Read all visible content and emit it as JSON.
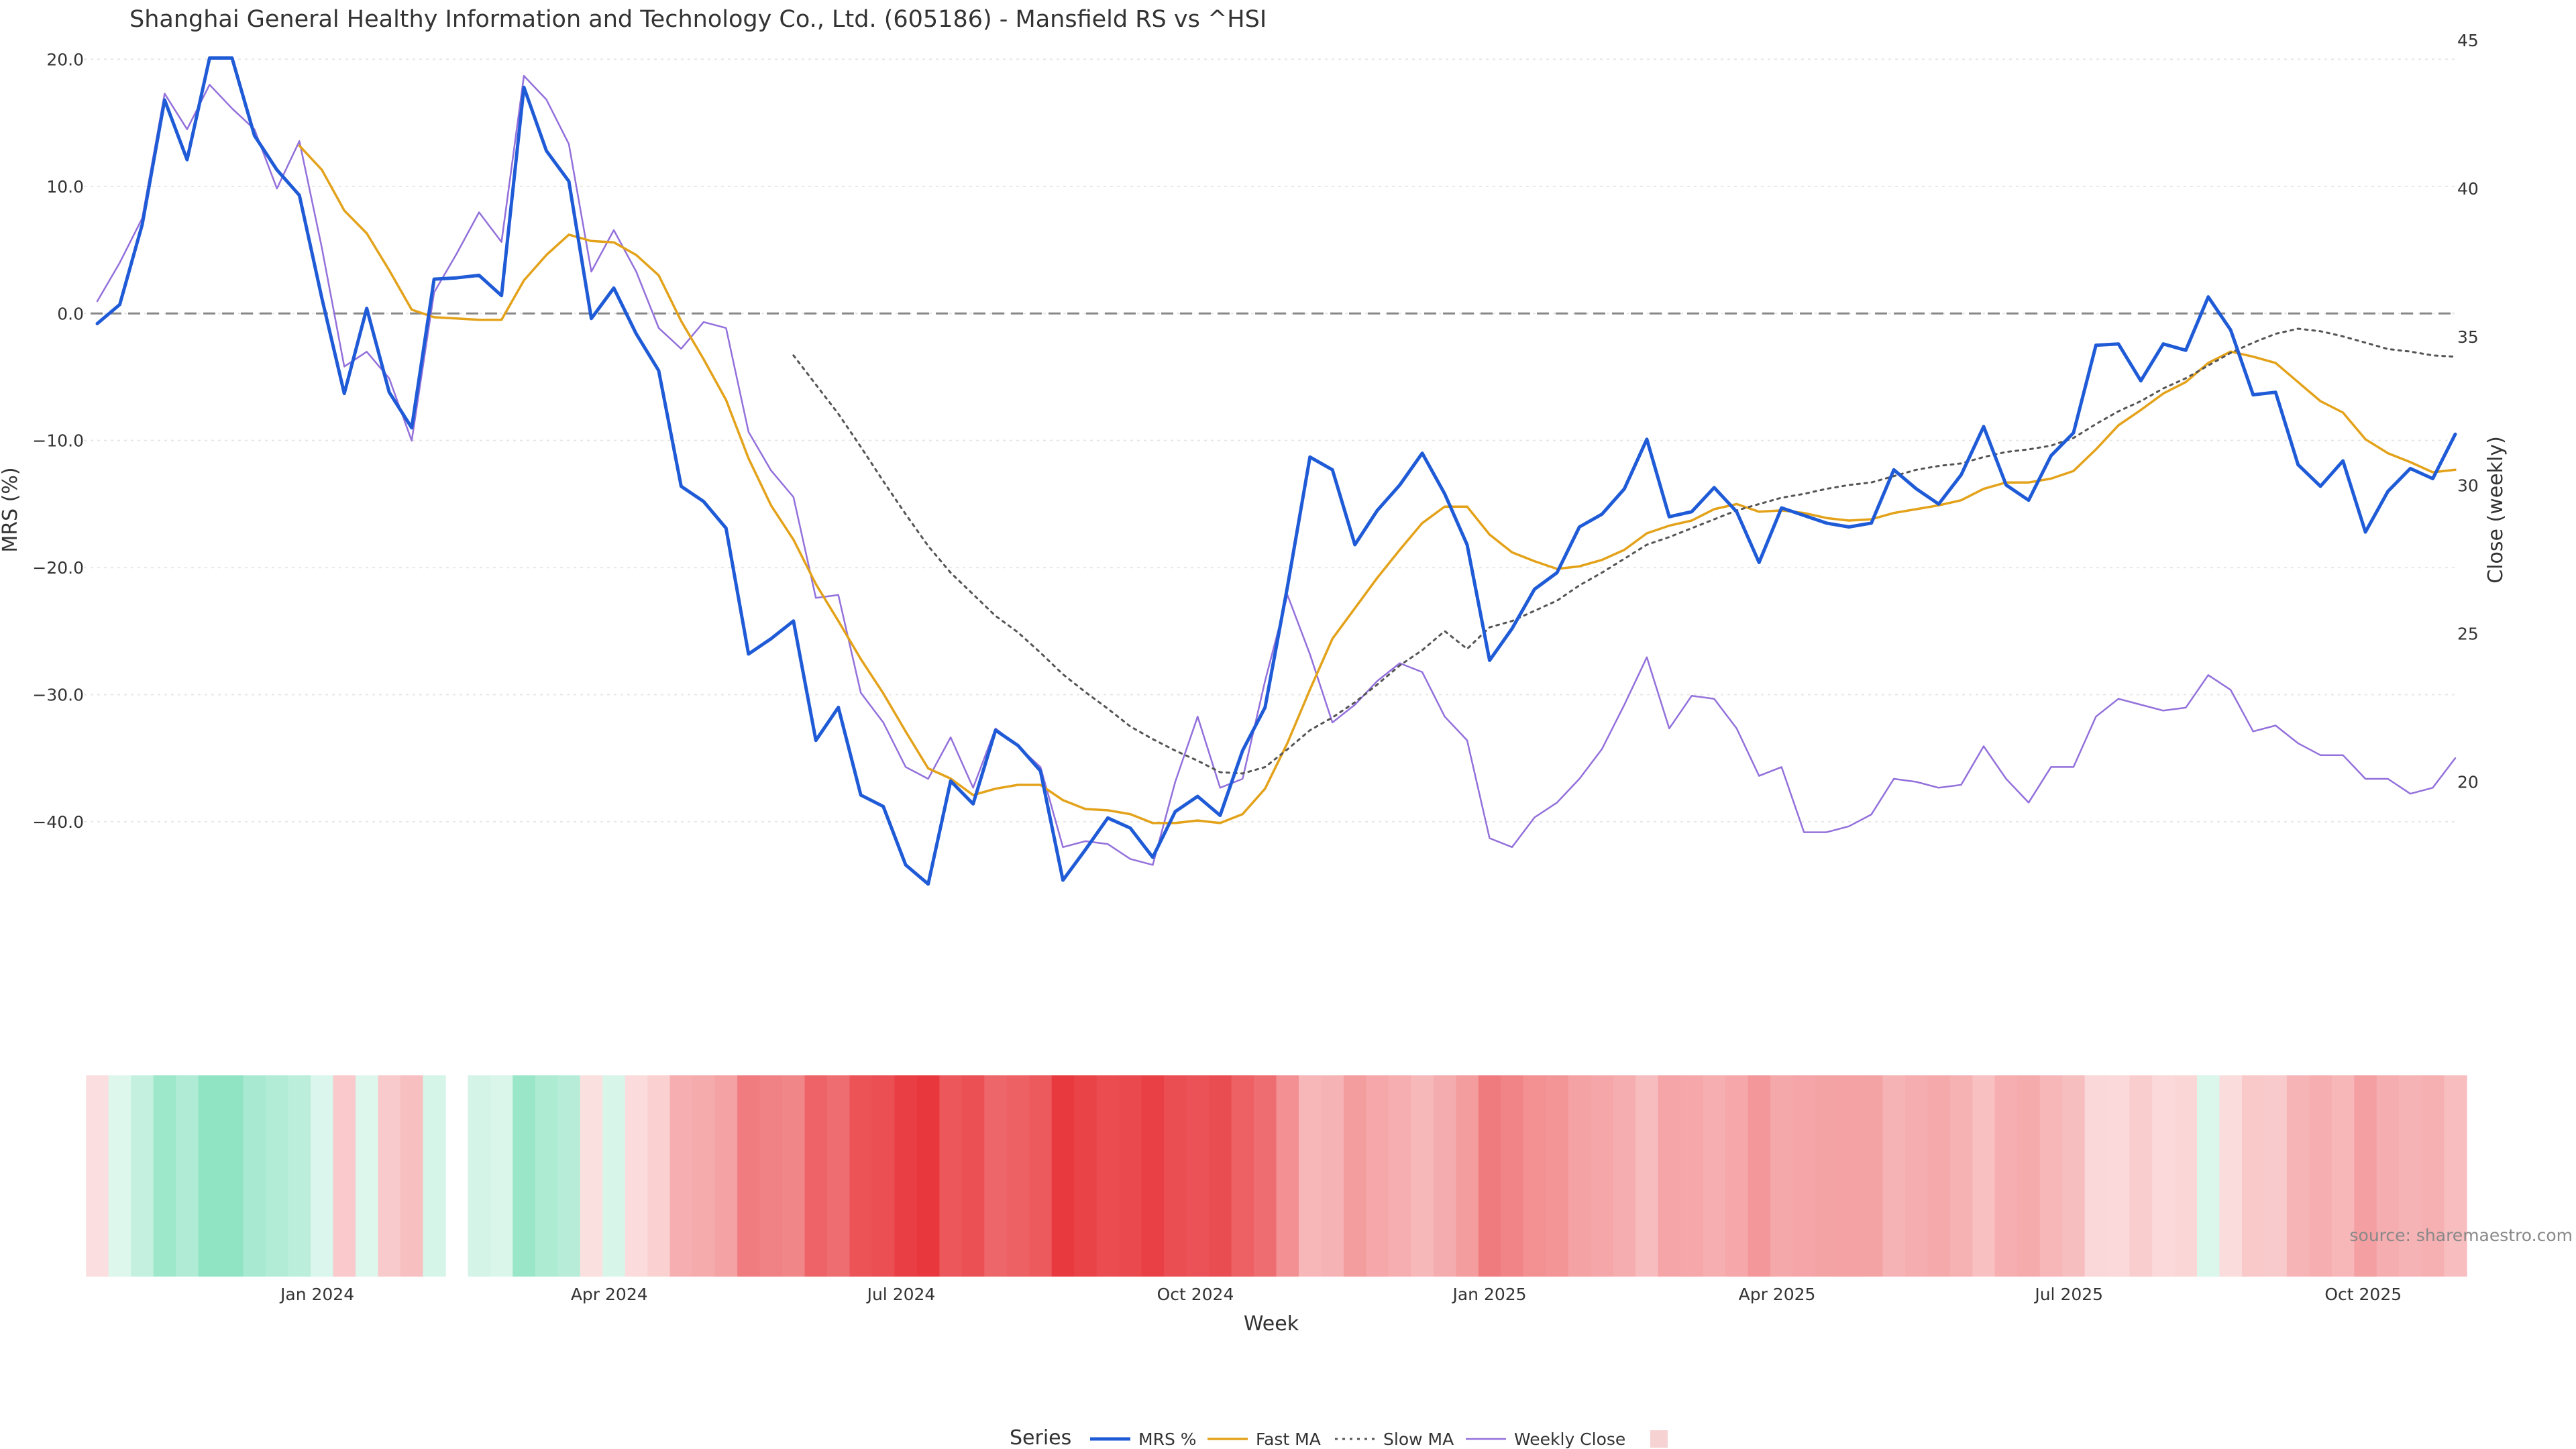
{
  "chart_data": {
    "type": "line",
    "title": "Shanghai General Healthy Information and Technology Co., Ltd. (605186) - Mansfield RS vs ^HSI",
    "xlabel": "Week",
    "ylabel": "MRS (%)",
    "y2label": "Close (weekly)",
    "ylim": [
      -53.2,
      21.5
    ],
    "y2lim": [
      13,
      45
    ],
    "y_ticks": [
      20,
      10,
      0,
      -10,
      -20,
      -30,
      -40
    ],
    "y_tick_labels": [
      "20.0",
      "10.0",
      "0.0",
      "−10.0",
      "−20.0",
      "−30.0",
      "−40.0"
    ],
    "y2_ticks": [
      45,
      40,
      35,
      30,
      25,
      20
    ],
    "y2_tick_labels": [
      "45",
      "40",
      "35",
      "30",
      "25",
      "20"
    ],
    "x_ticks": [
      {
        "label": "Jan 2024",
        "week": 9.8
      },
      {
        "label": "Apr 2024",
        "week": 22.8
      },
      {
        "label": "Jul 2024",
        "week": 35.8
      },
      {
        "label": "Oct 2024",
        "week": 48.9
      },
      {
        "label": "Jan 2025",
        "week": 62.0
      },
      {
        "label": "Apr 2025",
        "week": 74.8
      },
      {
        "label": "Jul 2025",
        "week": 87.8
      },
      {
        "label": "Oct 2025",
        "week": 100.9
      }
    ],
    "reference_line": 0,
    "series": [
      {
        "name": "MRS %",
        "color": "#1f5bd6",
        "style": "solid",
        "axis": "left",
        "width": 5,
        "values": [
          -0.8,
          0.7,
          7.0,
          16.8,
          12.1,
          20.1,
          20.1,
          14.0,
          11.3,
          9.3,
          1.2,
          -6.3,
          0.4,
          -6.2,
          -9.0,
          2.7,
          2.8,
          3.0,
          1.4,
          17.8,
          12.8,
          10.4,
          -0.4,
          2.0,
          -1.6,
          -4.5,
          -13.6,
          -14.8,
          -16.9,
          -26.8,
          -25.6,
          -24.2,
          -33.6,
          -31.0,
          -37.9,
          -38.8,
          -43.4,
          -44.9,
          -36.8,
          -38.6,
          -32.8,
          -34.0,
          -36.0,
          -44.6,
          -42.2,
          -39.7,
          -40.5,
          -42.8,
          -39.2,
          -38.0,
          -39.5,
          -34.4,
          -31.0,
          -21.5,
          -11.3,
          -12.3,
          -18.2,
          -15.5,
          -13.5,
          -11.0,
          -14.2,
          -18.2,
          -27.3,
          -24.8,
          -21.7,
          -20.4,
          -16.8,
          -15.8,
          -13.8,
          -9.9,
          -16.0,
          -15.6,
          -13.7,
          -15.6,
          -19.6,
          -15.3,
          -15.9,
          -16.5,
          -16.8,
          -16.5,
          -12.3,
          -13.8,
          -15.0,
          -12.7,
          -8.9,
          -13.5,
          -14.7,
          -11.2,
          -9.4,
          -2.5,
          -2.4,
          -5.3,
          -2.4,
          -2.9,
          1.3,
          -1.3,
          -6.4,
          -6.2,
          -11.9,
          -13.6,
          -11.6,
          -17.2,
          -14.0,
          -12.2,
          -13.0,
          -9.5
        ]
      },
      {
        "name": "Fast MA",
        "color": "#e3a21a",
        "style": "solid",
        "axis": "left",
        "width": 3.5,
        "values": [
          null,
          null,
          null,
          null,
          null,
          null,
          null,
          null,
          null,
          13.2,
          11.3,
          8.1,
          6.3,
          3.4,
          0.3,
          -0.3,
          -0.4,
          -0.5,
          -0.5,
          2.6,
          4.6,
          6.2,
          5.7,
          5.6,
          4.6,
          3.0,
          -0.6,
          -3.6,
          -6.8,
          -11.4,
          -15.1,
          -17.8,
          -21.3,
          -24.2,
          -27.2,
          -29.9,
          -32.9,
          -35.8,
          -36.6,
          -37.9,
          -37.4,
          -37.1,
          -37.1,
          -38.3,
          -39.0,
          -39.1,
          -39.4,
          -40.1,
          -40.1,
          -39.9,
          -40.1,
          -39.4,
          -37.4,
          -33.8,
          -29.6,
          -25.6,
          -23.2,
          -20.8,
          -18.6,
          -16.5,
          -15.2,
          -15.2,
          -17.4,
          -18.8,
          -19.5,
          -20.1,
          -19.9,
          -19.4,
          -18.6,
          -17.3,
          -16.7,
          -16.3,
          -15.4,
          -15.0,
          -15.6,
          -15.5,
          -15.7,
          -16.1,
          -16.3,
          -16.2,
          -15.7,
          -15.4,
          -15.1,
          -14.7,
          -13.8,
          -13.3,
          -13.3,
          -13.0,
          -12.4,
          -10.7,
          -8.8,
          -7.6,
          -6.3,
          -5.4,
          -3.9,
          -3.0,
          -3.4,
          -3.9,
          -5.4,
          -6.9,
          -7.8,
          -9.9,
          -11.0,
          -11.7,
          -12.5,
          -12.3
        ]
      },
      {
        "name": "Slow MA",
        "color": "#555555",
        "style": "dotted",
        "axis": "left",
        "width": 3,
        "values": [
          null,
          null,
          null,
          null,
          null,
          null,
          null,
          null,
          null,
          null,
          null,
          null,
          null,
          null,
          null,
          null,
          null,
          null,
          null,
          null,
          null,
          null,
          null,
          null,
          null,
          null,
          null,
          null,
          null,
          null,
          null,
          -3.3,
          -5.6,
          -7.9,
          -10.5,
          -13.2,
          -15.8,
          -18.3,
          -20.4,
          -22.1,
          -23.8,
          -25.1,
          -26.7,
          -28.4,
          -29.8,
          -31.1,
          -32.5,
          -33.5,
          -34.4,
          -35.2,
          -36.1,
          -36.2,
          -35.7,
          -34.3,
          -32.8,
          -31.8,
          -30.6,
          -29.2,
          -27.7,
          -26.5,
          -25.0,
          -26.4,
          -24.7,
          -24.2,
          -23.4,
          -22.6,
          -21.4,
          -20.4,
          -19.3,
          -18.2,
          -17.6,
          -16.9,
          -16.2,
          -15.5,
          -15.0,
          -14.5,
          -14.2,
          -13.8,
          -13.5,
          -13.3,
          -12.8,
          -12.3,
          -12.0,
          -11.8,
          -11.3,
          -10.9,
          -10.7,
          -10.4,
          -9.8,
          -8.7,
          -7.7,
          -6.9,
          -5.9,
          -5.1,
          -4.1,
          -3.1,
          -2.3,
          -1.6,
          -1.2,
          -1.4,
          -1.8,
          -2.3,
          -2.8,
          -3.0,
          -3.3,
          -3.4
        ]
      },
      {
        "name": "Weekly Close",
        "color": "#9370db",
        "style": "solid",
        "axis": "right",
        "width": 2.5,
        "values": [
          36.2,
          37.5,
          39.0,
          43.2,
          42.0,
          43.5,
          42.7,
          42.0,
          40.0,
          41.6,
          38.0,
          34.0,
          34.5,
          33.6,
          31.5,
          36.5,
          37.8,
          39.2,
          38.2,
          43.8,
          43.0,
          41.5,
          37.2,
          38.6,
          37.2,
          35.3,
          34.6,
          35.5,
          35.3,
          31.8,
          30.5,
          29.6,
          26.2,
          26.3,
          23.0,
          22.0,
          20.5,
          20.1,
          21.5,
          19.8,
          21.8,
          21.2,
          20.5,
          17.8,
          18.0,
          17.9,
          17.4,
          17.2,
          20.0,
          22.2,
          19.8,
          20.1,
          23.4,
          26.3,
          24.3,
          22.0,
          22.6,
          23.4,
          24.0,
          23.7,
          22.2,
          21.4,
          18.1,
          17.8,
          18.8,
          19.3,
          20.1,
          21.1,
          22.6,
          24.2,
          21.8,
          22.9,
          22.8,
          21.8,
          20.2,
          20.5,
          18.3,
          18.3,
          18.5,
          18.9,
          20.1,
          20.0,
          19.8,
          19.9,
          21.2,
          20.1,
          19.3,
          20.5,
          20.5,
          22.2,
          22.8,
          22.6,
          22.4,
          22.5,
          23.6,
          23.1,
          21.7,
          21.9,
          21.3,
          20.9,
          20.9,
          20.1,
          20.1,
          19.6,
          19.8,
          20.8
        ]
      }
    ],
    "heatmap_band": {
      "description": "MRS % shading per week (green positive, red negative)",
      "positive_color": "#2ecc8f",
      "negative_color": "#e8383d",
      "max_abs": 45,
      "gap_weeks": [
        16
      ]
    },
    "legend": {
      "title": "Series",
      "entries": [
        "MRS %",
        "Fast MA",
        "Slow MA",
        "Weekly Close",
        ""
      ]
    },
    "source_text": "source: sharemaestro.com"
  }
}
